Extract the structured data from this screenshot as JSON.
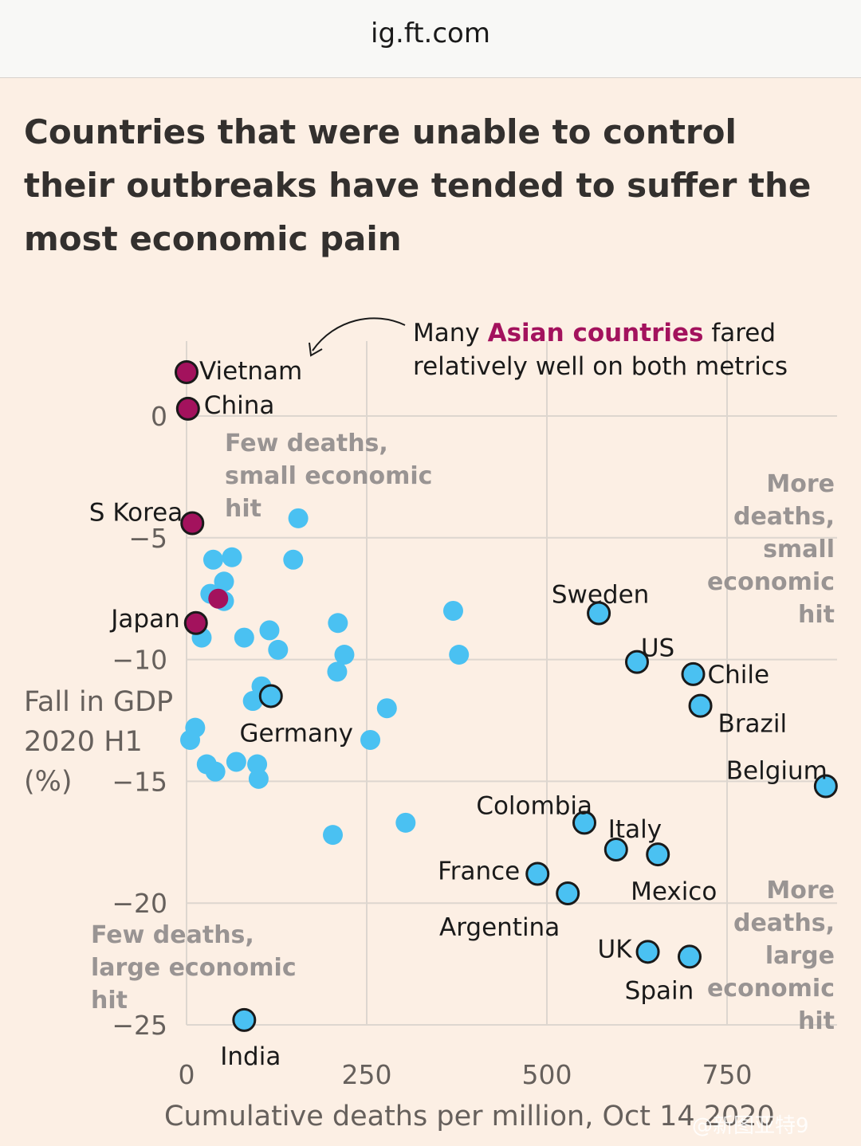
{
  "browser": {
    "domain": "ig.ft.com"
  },
  "watermark": "@新图亚特9",
  "chart_data": {
    "type": "scatter",
    "title": "Countries that were unable to control their outbreaks have tended to suffer the most economic pain",
    "xlabel": "Cumulative deaths per million, Oct 14 2020",
    "ylabel_lines": [
      "Fall in GDP",
      "2020 H1",
      "(%)"
    ],
    "xlim": [
      0,
      900
    ],
    "ylim": [
      -27,
      2.5
    ],
    "x_ticks": [
      0,
      250,
      500,
      750
    ],
    "y_ticks": [
      0,
      -5,
      -10,
      -15,
      -20,
      -25
    ],
    "y_tick_labels": [
      "0",
      "−5",
      "−10",
      "−15",
      "−20",
      "−25"
    ],
    "grid": true,
    "colors": {
      "asian": "#a3125d",
      "highlight": "#4ac1f2",
      "other": "#4ac1f2",
      "grid": "#ddd6cf",
      "quadrant_text": "#999493"
    },
    "annotation": {
      "prefix": "Many ",
      "highlight": "Asian countries",
      "suffix": " fared",
      "line2": "relatively well on both metrics"
    },
    "quadrant_labels": [
      {
        "lines": [
          "Few deaths,",
          "small economic",
          "hit"
        ]
      },
      {
        "lines": [
          "More",
          "deaths,",
          "small",
          "economic",
          "hit"
        ]
      },
      {
        "lines": [
          "Few deaths,",
          "large economic",
          "hit"
        ]
      },
      {
        "lines": [
          "More",
          "deaths,",
          "large",
          "economic",
          "hit"
        ]
      }
    ],
    "labeled_points": [
      {
        "name": "Vietnam",
        "x": 0,
        "y": 1.8,
        "group": "asian"
      },
      {
        "name": "China",
        "x": 2,
        "y": 0.3,
        "group": "asian"
      },
      {
        "name": "S Korea",
        "x": 8,
        "y": -4.4,
        "group": "asian"
      },
      {
        "name": "Japan",
        "x": 13,
        "y": -8.5,
        "group": "asian"
      },
      {
        "name": "Germany",
        "x": 117,
        "y": -11.5,
        "group": "highlight"
      },
      {
        "name": "India",
        "x": 80,
        "y": -24.8,
        "group": "highlight"
      },
      {
        "name": "Sweden",
        "x": 572,
        "y": -8.1,
        "group": "highlight"
      },
      {
        "name": "US",
        "x": 625,
        "y": -10.1,
        "group": "highlight"
      },
      {
        "name": "Chile",
        "x": 703,
        "y": -10.6,
        "group": "highlight"
      },
      {
        "name": "Brazil",
        "x": 713,
        "y": -11.9,
        "group": "highlight"
      },
      {
        "name": "Belgium",
        "x": 887,
        "y": -15.2,
        "group": "highlight"
      },
      {
        "name": "Colombia",
        "x": 552,
        "y": -16.7,
        "group": "highlight"
      },
      {
        "name": "Italy",
        "x": 596,
        "y": -17.8,
        "group": "highlight"
      },
      {
        "name": "Mexico",
        "x": 654,
        "y": -18.0,
        "group": "highlight"
      },
      {
        "name": "France",
        "x": 487,
        "y": -18.8,
        "group": "highlight"
      },
      {
        "name": "Argentina",
        "x": 529,
        "y": -19.6,
        "group": "highlight"
      },
      {
        "name": "UK",
        "x": 640,
        "y": -22.0,
        "group": "highlight"
      },
      {
        "name": "Spain",
        "x": 698,
        "y": -22.2,
        "group": "highlight"
      }
    ],
    "unlabeled_points": [
      {
        "x": 155,
        "y": -4.2,
        "group": "other"
      },
      {
        "x": 37,
        "y": -5.9,
        "group": "other"
      },
      {
        "x": 63,
        "y": -5.8,
        "group": "other"
      },
      {
        "x": 148,
        "y": -5.9,
        "group": "other"
      },
      {
        "x": 52,
        "y": -6.8,
        "group": "other"
      },
      {
        "x": 33,
        "y": -7.3,
        "group": "other"
      },
      {
        "x": 52,
        "y": -7.6,
        "group": "other"
      },
      {
        "x": 44,
        "y": -7.5,
        "group": "asian"
      },
      {
        "x": 370,
        "y": -8.0,
        "group": "other"
      },
      {
        "x": 21,
        "y": -9.1,
        "group": "other"
      },
      {
        "x": 80,
        "y": -9.1,
        "group": "other"
      },
      {
        "x": 115,
        "y": -8.8,
        "group": "other"
      },
      {
        "x": 210,
        "y": -8.5,
        "group": "other"
      },
      {
        "x": 127,
        "y": -9.6,
        "group": "other"
      },
      {
        "x": 219,
        "y": -9.8,
        "group": "other"
      },
      {
        "x": 378,
        "y": -9.8,
        "group": "other"
      },
      {
        "x": 209,
        "y": -10.5,
        "group": "other"
      },
      {
        "x": 104,
        "y": -11.1,
        "group": "other"
      },
      {
        "x": 92,
        "y": -11.7,
        "group": "other"
      },
      {
        "x": 278,
        "y": -12.0,
        "group": "other"
      },
      {
        "x": 12,
        "y": -12.8,
        "group": "other"
      },
      {
        "x": 5,
        "y": -13.3,
        "group": "other"
      },
      {
        "x": 255,
        "y": -13.3,
        "group": "other"
      },
      {
        "x": 28,
        "y": -14.3,
        "group": "other"
      },
      {
        "x": 40,
        "y": -14.6,
        "group": "other"
      },
      {
        "x": 69,
        "y": -14.2,
        "group": "other"
      },
      {
        "x": 98,
        "y": -14.3,
        "group": "other"
      },
      {
        "x": 100,
        "y": -14.9,
        "group": "other"
      },
      {
        "x": 304,
        "y": -16.7,
        "group": "other"
      },
      {
        "x": 203,
        "y": -17.2,
        "group": "other"
      }
    ]
  }
}
